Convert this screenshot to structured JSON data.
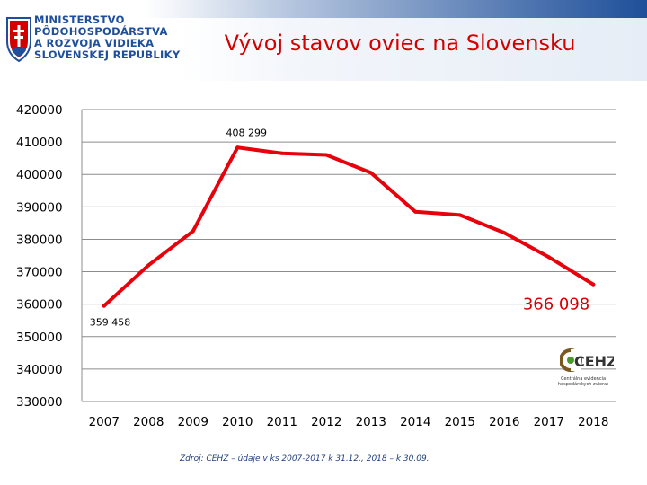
{
  "header": {
    "ministry_lines": [
      "MINISTERSTVO",
      "PÔDOHOSPODÁRSTVA",
      "A ROZVOJA VIDIEKA",
      "SLOVENSKEJ REPUBLIKY"
    ],
    "brand_color": "#1f4f9a"
  },
  "title": "Vývoj stavov oviec na Slovensku",
  "source": "Zdroj: CEHZ – údaje v ks 2007-2017 k 31.12., 2018 – k 30.09.",
  "cehz": {
    "mark": "CEHZ",
    "caption": "Centrálna evidencia hospodárskych zvierat"
  },
  "chart_data": {
    "type": "line",
    "title": "Vývoj stavov oviec na Slovensku",
    "categories": [
      "2007",
      "2008",
      "2009",
      "2010",
      "2011",
      "2012",
      "2013",
      "2014",
      "2015",
      "2016",
      "2017",
      "2018"
    ],
    "series": [
      {
        "values": [
          359458,
          372000,
          382500,
          408299,
          406500,
          406000,
          400500,
          388500,
          387500,
          382000,
          374500,
          366098
        ],
        "color": "#e8000b"
      }
    ],
    "data_labels": [
      {
        "index": 0,
        "text": "359 458"
      },
      {
        "index": 3,
        "text": "408 299"
      },
      {
        "index": 11,
        "text": "366 098"
      }
    ],
    "ylim": [
      330000,
      420000
    ],
    "yticks": [
      420000,
      410000,
      400000,
      390000,
      380000,
      370000,
      360000,
      350000,
      340000,
      330000
    ],
    "grid": true
  }
}
